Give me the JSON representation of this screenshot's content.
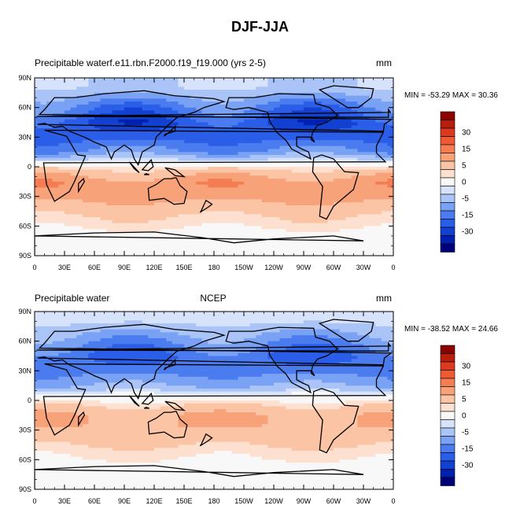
{
  "figure": {
    "title": "DJF-JJA"
  },
  "colors": {
    "palette": [
      "#00007a",
      "#0020b0",
      "#1240d0",
      "#2a5ee8",
      "#4a7cf0",
      "#7aa2f4",
      "#aac4f7",
      "#d6e3fb",
      "#f8f8f8",
      "#fde0cf",
      "#fbc4a4",
      "#f8a27a",
      "#f57d52",
      "#ee5a34",
      "#dc3a1e",
      "#b81e0c",
      "#8a0404"
    ],
    "land_outline": "#000000"
  },
  "chart_data": [
    {
      "type": "heatmap",
      "title_left": "Precipitable waterf.e11.rbn.F2000.f19_f19.000 (yrs 2-5)",
      "title_center": "",
      "title_right": "mm",
      "stats": "MIN = -53.29 MAX =  30.36",
      "min": -53.29,
      "max": 30.36,
      "x_ticks": [
        "0",
        "30E",
        "60E",
        "90E",
        "120E",
        "150E",
        "180",
        "150W",
        "120W",
        "90W",
        "60W",
        "30W",
        "0"
      ],
      "y_ticks": [
        "90N",
        "60N",
        "30N",
        "0",
        "30S",
        "60S",
        "90S"
      ],
      "colorbar_labels": [
        "30",
        "15",
        "5",
        "0",
        "-5",
        "-15",
        "-30"
      ],
      "zonal_profile": [
        {
          "lat": 80,
          "value": -5
        },
        {
          "lat": 60,
          "value": -18
        },
        {
          "lat": 45,
          "value": -25
        },
        {
          "lat": 30,
          "value": -22
        },
        {
          "lat": 15,
          "value": -14
        },
        {
          "lat": 5,
          "value": -2
        },
        {
          "lat": -5,
          "value": 7
        },
        {
          "lat": -15,
          "value": 13
        },
        {
          "lat": -25,
          "value": 13
        },
        {
          "lat": -35,
          "value": 10
        },
        {
          "lat": -50,
          "value": 5
        },
        {
          "lat": -65,
          "value": 2
        },
        {
          "lat": -80,
          "value": 0.5
        }
      ]
    },
    {
      "type": "heatmap",
      "title_left": "Precipitable water",
      "title_center": "NCEP",
      "title_right": "mm",
      "stats": "MIN = -38.52 MAX =  24.66",
      "min": -38.52,
      "max": 24.66,
      "x_ticks": [
        "0",
        "30E",
        "60E",
        "90E",
        "120E",
        "150E",
        "180",
        "150W",
        "120W",
        "90W",
        "60W",
        "30W",
        "0"
      ],
      "y_ticks": [
        "90N",
        "60N",
        "30N",
        "0",
        "30S",
        "60S",
        "90S"
      ],
      "colorbar_labels": [
        "30",
        "15",
        "5",
        "0",
        "-5",
        "-15",
        "-30"
      ],
      "zonal_profile": [
        {
          "lat": 80,
          "value": -4
        },
        {
          "lat": 60,
          "value": -14
        },
        {
          "lat": 45,
          "value": -20
        },
        {
          "lat": 30,
          "value": -17
        },
        {
          "lat": 15,
          "value": -10
        },
        {
          "lat": 5,
          "value": -1
        },
        {
          "lat": -5,
          "value": 5
        },
        {
          "lat": -15,
          "value": 10
        },
        {
          "lat": -25,
          "value": 10
        },
        {
          "lat": -35,
          "value": 8
        },
        {
          "lat": -50,
          "value": 4
        },
        {
          "lat": -65,
          "value": 1.5
        },
        {
          "lat": -80,
          "value": 0.5
        }
      ]
    }
  ]
}
